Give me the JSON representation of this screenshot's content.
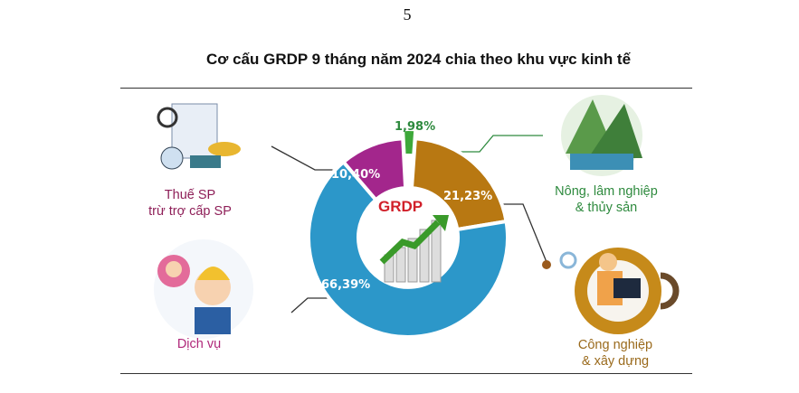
{
  "page_number": "5",
  "title": "Cơ cấu GRDP 9 tháng năm 2024 chia theo khu vực kinh tế",
  "center_label": "GRDP",
  "chart_data": {
    "type": "pie",
    "variant": "donut",
    "title": "Cơ cấu GRDP 9 tháng năm 2024 chia theo khu vực kinh tế",
    "unit": "%",
    "slices": [
      {
        "name": "Nông, lâm nghiệp & thủy sản",
        "value": 1.98,
        "label": "1,98%",
        "color": "#3da83a"
      },
      {
        "name": "Công nghiệp & xây dựng",
        "value": 21.23,
        "label": "21,23%",
        "color": "#b87812"
      },
      {
        "name": "Dịch vụ",
        "value": 66.39,
        "label": "66,39%",
        "color": "#2c97c9"
      },
      {
        "name": "Thuế SP trừ trợ cấp SP",
        "value": 10.4,
        "label": "10,40%",
        "color": "#a3268c"
      }
    ]
  },
  "legend": {
    "tax": [
      "Thuế SP",
      "trừ trợ cấp SP"
    ],
    "agri": [
      "Nông, lâm nghiệp",
      "& thủy sản"
    ],
    "industry": [
      "Công nghiệp",
      "& xây dựng"
    ],
    "services": [
      "Dịch vụ"
    ]
  },
  "colors": {
    "tax_text": "#8e1f58",
    "agri_text": "#2e8a3e",
    "industry_text": "#9a6a1c",
    "services_text": "#b0287a"
  }
}
